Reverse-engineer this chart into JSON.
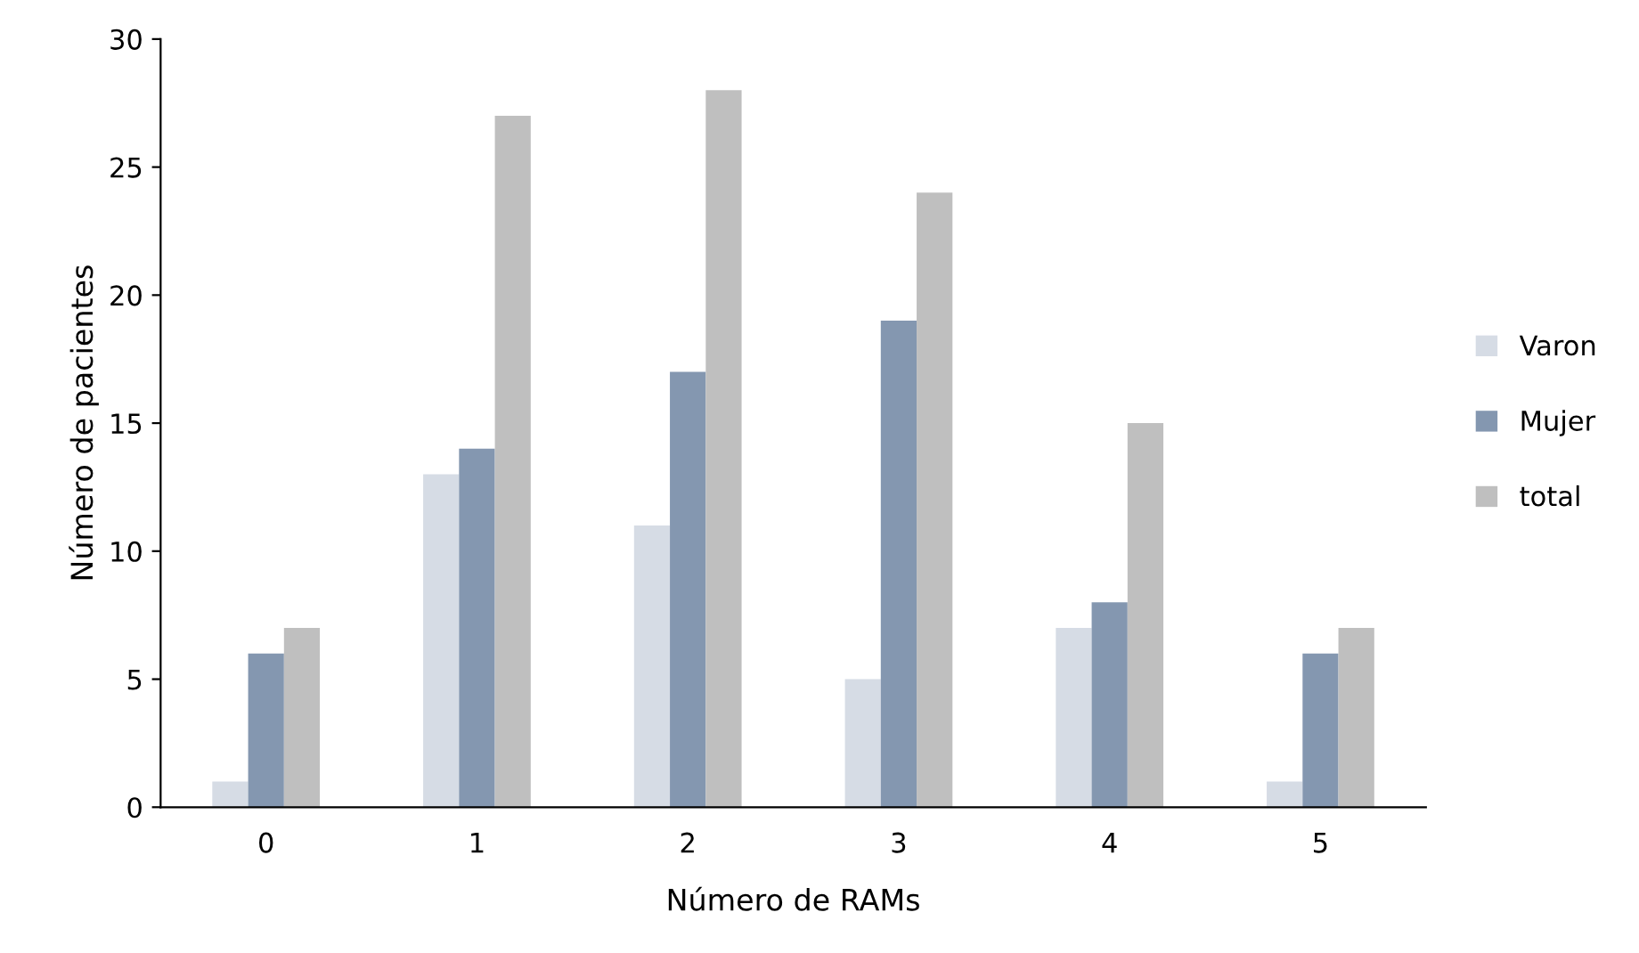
{
  "chart_data": {
    "type": "bar",
    "xlabel": "Número de RAMs",
    "ylabel": "Número de pacientes",
    "categories": [
      "0",
      "1",
      "2",
      "3",
      "4",
      "5"
    ],
    "series": [
      {
        "name": "Varon",
        "color": "#d6dce5",
        "values": [
          1,
          13,
          11,
          5,
          7,
          1
        ]
      },
      {
        "name": "Mujer",
        "color": "#8497b0",
        "values": [
          6,
          14,
          17,
          19,
          8,
          6
        ]
      },
      {
        "name": "total",
        "color": "#bfbfbf",
        "values": [
          7,
          27,
          28,
          24,
          15,
          7
        ]
      }
    ],
    "ylim": [
      0,
      30
    ],
    "yticks": [
      0,
      5,
      10,
      15,
      20,
      25,
      30
    ],
    "grid": false,
    "legend": "right"
  }
}
